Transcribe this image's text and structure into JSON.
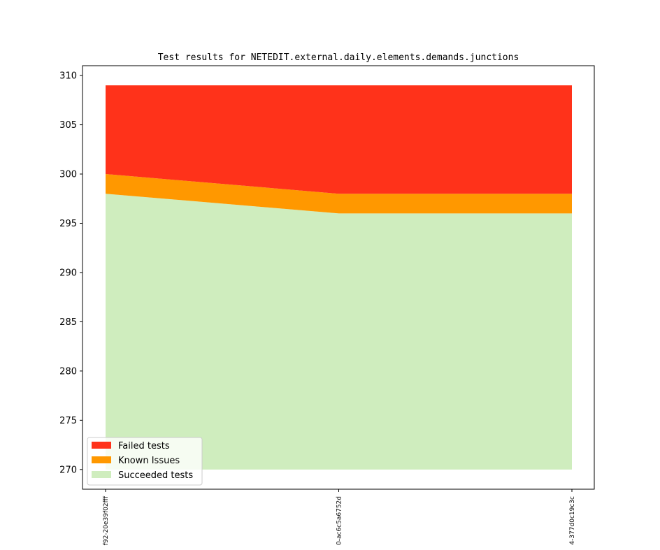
{
  "chart_data": {
    "type": "area",
    "title": "Test results for NETEDIT.external.daily.elements.demands.junctions",
    "xlabel": "",
    "ylabel": "",
    "categories": [
      "f92-20e39f02fff",
      "0-ac6c5a6752d",
      "4-377d0c19c3c"
    ],
    "ylim": [
      268,
      311
    ],
    "yticks": [
      270,
      275,
      280,
      285,
      290,
      295,
      300,
      305,
      310
    ],
    "baseline": 270,
    "stacked_boundaries": [
      {
        "name": "Succeeded tests",
        "values": [
          298,
          296,
          296
        ],
        "color": "#cfedbe"
      },
      {
        "name": "Known Issues",
        "values": [
          300,
          298,
          298
        ],
        "color": "#ff9800"
      },
      {
        "name": "Failed tests",
        "values": [
          309,
          309,
          309
        ],
        "color": "#ff321a"
      }
    ],
    "legend": {
      "position": "lower-left",
      "entries": [
        {
          "label": "Failed tests",
          "color": "#ff321a"
        },
        {
          "label": "Known Issues",
          "color": "#ff9800"
        },
        {
          "label": "Succeeded tests",
          "color": "#cfedbe"
        }
      ]
    },
    "grid": false
  }
}
